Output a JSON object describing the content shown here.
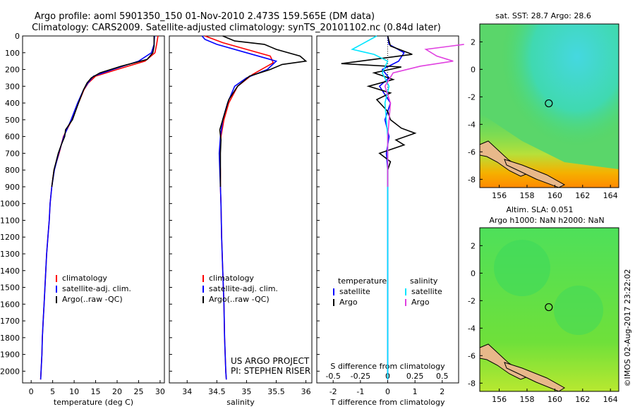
{
  "header": {
    "line1": "Argo profile: aoml 5901350_150 01-Nov-2010 2.473S 159.565E (DM data)",
    "line2": "Climatology: CARS2009. Satellite-adjusted climatology: synTS_20101102.nc (0.84d later)"
  },
  "sst_map": {
    "title": "sat. SST: 28.7 Argo: 28.6",
    "xticks": [
      "156",
      "158",
      "160",
      "162",
      "164"
    ],
    "yticks": [
      "2",
      "0",
      "-2",
      "-4",
      "-6",
      "-8"
    ],
    "marker": {
      "lon": 159.565,
      "lat": -2.473
    },
    "colors": {
      "land": "#e8b88a",
      "cool": "#3fdccb",
      "warm": "#ff9a00"
    }
  },
  "sla_map": {
    "title1": "Altim. SLA: 0.051",
    "title2": "Argo h1000: NaN h2000: NaN",
    "xticks": [
      "156",
      "158",
      "160",
      "162",
      "164"
    ],
    "yticks": [
      "2",
      "0",
      "-2",
      "-4",
      "-6",
      "-8"
    ],
    "marker": {
      "lon": 159.565,
      "lat": -2.473
    }
  },
  "credits": {
    "project": "US ARGO PROJECT",
    "pi": "PI: STEPHEN RISER",
    "stamp": "©IMOS 02-Aug-2017 23:22:02"
  },
  "chart_data": [
    {
      "type": "line",
      "xlabel": "temperature (deg C)",
      "ylabel": "",
      "xlim": [
        -2,
        31
      ],
      "ylim": [
        2070,
        0
      ],
      "xticks": [
        0,
        5,
        10,
        15,
        20,
        25,
        30
      ],
      "yticks": [
        0,
        100,
        200,
        300,
        400,
        500,
        600,
        700,
        800,
        900,
        1000,
        1100,
        1200,
        1300,
        1400,
        1500,
        1600,
        1700,
        1800,
        1900,
        2000
      ],
      "legend": [
        "climatology",
        "satellite-adj. clim.",
        "Argo(..raw -QC)"
      ],
      "series": [
        {
          "name": "climatology",
          "color": "#ff0000",
          "points": [
            [
              29.5,
              0
            ],
            [
              29.2,
              50
            ],
            [
              28.8,
              100
            ],
            [
              26.5,
              150
            ],
            [
              20,
              200
            ],
            [
              15,
              240
            ],
            [
              13.3,
              280
            ],
            [
              12.3,
              320
            ],
            [
              11,
              400
            ],
            [
              9.5,
              500
            ],
            [
              7.5,
              600
            ],
            [
              6.5,
              700
            ],
            [
              5.3,
              800
            ],
            [
              4.8,
              900
            ],
            [
              4.4,
              1000
            ],
            [
              4.2,
              1100
            ],
            [
              3.9,
              1200
            ],
            [
              3.6,
              1300
            ],
            [
              3.4,
              1400
            ],
            [
              3.2,
              1500
            ],
            [
              3,
              1600
            ],
            [
              2.8,
              1700
            ],
            [
              2.6,
              1800
            ],
            [
              2.5,
              1900
            ],
            [
              2.3,
              2000
            ],
            [
              2.2,
              2050
            ]
          ]
        },
        {
          "name": "satellite-adj. clim.",
          "color": "#0000ff",
          "points": [
            [
              28.7,
              0
            ],
            [
              28.6,
              50
            ],
            [
              28,
              100
            ],
            [
              25,
              150
            ],
            [
              19,
              200
            ],
            [
              14.5,
              240
            ],
            [
              13.2,
              280
            ],
            [
              12.2,
              320
            ],
            [
              10.8,
              400
            ],
            [
              9.3,
              500
            ],
            [
              7.6,
              600
            ],
            [
              6.4,
              700
            ],
            [
              5.4,
              800
            ],
            [
              4.8,
              900
            ],
            [
              4.4,
              1000
            ],
            [
              4.2,
              1100
            ],
            [
              3.9,
              1200
            ],
            [
              3.6,
              1300
            ],
            [
              3.4,
              1400
            ],
            [
              3.2,
              1500
            ],
            [
              3,
              1600
            ],
            [
              2.8,
              1700
            ],
            [
              2.6,
              1800
            ],
            [
              2.5,
              1900
            ],
            [
              2.3,
              2000
            ],
            [
              2.2,
              2050
            ]
          ]
        },
        {
          "name": "Argo(..raw -QC)",
          "color": "#000000",
          "points": [
            [
              28.6,
              0
            ],
            [
              28.6,
              60
            ],
            [
              28.3,
              100
            ],
            [
              27,
              140
            ],
            [
              21,
              180
            ],
            [
              16,
              220
            ],
            [
              14,
              250
            ],
            [
              13,
              280
            ],
            [
              12.2,
              320
            ],
            [
              11,
              400
            ],
            [
              9.6,
              500
            ],
            [
              8,
              560
            ],
            [
              7.8,
              600
            ],
            [
              7,
              650
            ],
            [
              6.3,
              700
            ],
            [
              5.3,
              800
            ],
            [
              4.8,
              900
            ]
          ]
        }
      ]
    },
    {
      "type": "line",
      "xlabel": "salinity",
      "ylabel": "",
      "xlim": [
        33.7,
        36.1
      ],
      "ylim": [
        2070,
        0
      ],
      "xticks": [
        34,
        34.5,
        35,
        35.5,
        36
      ],
      "legend": [
        "climatology",
        "satellite-adj. clim.",
        "Argo(..raw -QC)"
      ],
      "series": [
        {
          "name": "climatology",
          "color": "#ff0000",
          "points": [
            [
              34.3,
              0
            ],
            [
              34.6,
              40
            ],
            [
              35,
              80
            ],
            [
              35.4,
              120
            ],
            [
              35.45,
              160
            ],
            [
              35.1,
              230
            ],
            [
              34.85,
              300
            ],
            [
              34.7,
              400
            ],
            [
              34.62,
              500
            ],
            [
              34.57,
              600
            ],
            [
              34.55,
              700
            ],
            [
              34.56,
              800
            ],
            [
              34.56,
              900
            ],
            [
              34.57,
              1000
            ],
            [
              34.58,
              1200
            ],
            [
              34.6,
              1400
            ],
            [
              34.62,
              1600
            ],
            [
              34.63,
              1800
            ],
            [
              34.65,
              2000
            ],
            [
              34.66,
              2050
            ]
          ]
        },
        {
          "name": "satellite-adj. clim.",
          "color": "#0000ff",
          "points": [
            [
              34.25,
              0
            ],
            [
              34.3,
              20
            ],
            [
              34.5,
              50
            ],
            [
              35,
              100
            ],
            [
              35.5,
              150
            ],
            [
              35.35,
              200
            ],
            [
              35,
              250
            ],
            [
              34.8,
              300
            ],
            [
              34.68,
              400
            ],
            [
              34.6,
              500
            ],
            [
              34.56,
              600
            ],
            [
              34.54,
              700
            ],
            [
              34.55,
              800
            ],
            [
              34.56,
              900
            ],
            [
              34.57,
              1000
            ],
            [
              34.58,
              1200
            ],
            [
              34.6,
              1400
            ],
            [
              34.62,
              1600
            ],
            [
              34.63,
              1800
            ],
            [
              34.65,
              2000
            ],
            [
              34.66,
              2050
            ]
          ]
        },
        {
          "name": "Argo(..raw -QC)",
          "color": "#000000",
          "points": [
            [
              34.6,
              0
            ],
            [
              34.8,
              30
            ],
            [
              35.3,
              50
            ],
            [
              35.5,
              80
            ],
            [
              35.9,
              120
            ],
            [
              36,
              150
            ],
            [
              35.6,
              170
            ],
            [
              35.4,
              200
            ],
            [
              35.05,
              240
            ],
            [
              34.85,
              300
            ],
            [
              34.7,
              380
            ],
            [
              34.6,
              500
            ],
            [
              34.55,
              560
            ],
            [
              34.57,
              620
            ],
            [
              34.56,
              700
            ],
            [
              34.56,
              800
            ],
            [
              34.56,
              900
            ]
          ]
        }
      ]
    },
    {
      "type": "line",
      "xlabel": "T difference from climatology",
      "x2label": "S difference from climatology",
      "ylabel": "",
      "xlim": [
        -2.6,
        2.6
      ],
      "x2lim": [
        -0.65,
        0.65
      ],
      "ylim": [
        2070,
        0
      ],
      "xticks": [
        -2,
        -1,
        0,
        1,
        2
      ],
      "x2ticks": [
        "-0.5",
        "-0.25",
        "0",
        "0.25",
        "0.5"
      ],
      "legend_groups": {
        "temperature": [
          "satellite",
          "Argo"
        ],
        "salinity": [
          "satellite",
          "Argo"
        ]
      },
      "series": [
        {
          "name": "temperature satellite",
          "color": "#0000ff",
          "points": [
            [
              0,
              0
            ],
            [
              0.05,
              50
            ],
            [
              0.6,
              100
            ],
            [
              0.4,
              150
            ],
            [
              -0.2,
              200
            ],
            [
              0.05,
              250
            ],
            [
              -0.3,
              300
            ],
            [
              0.1,
              400
            ],
            [
              -0.1,
              500
            ],
            [
              0.05,
              600
            ],
            [
              -0.05,
              700
            ],
            [
              0,
              800
            ],
            [
              0,
              1000
            ],
            [
              0,
              2050
            ]
          ]
        },
        {
          "name": "temperature Argo",
          "color": "#000000",
          "points": [
            [
              0,
              0
            ],
            [
              0.1,
              60
            ],
            [
              0.9,
              110
            ],
            [
              -1,
              150
            ],
            [
              -1.7,
              165
            ],
            [
              0.5,
              185
            ],
            [
              -0.5,
              220
            ],
            [
              0.2,
              260
            ],
            [
              -0.7,
              300
            ],
            [
              0.1,
              340
            ],
            [
              -0.4,
              380
            ],
            [
              0,
              450
            ],
            [
              0.1,
              500
            ],
            [
              0.5,
              550
            ],
            [
              1,
              580
            ],
            [
              0.3,
              620
            ],
            [
              0.6,
              650
            ],
            [
              -0.3,
              700
            ],
            [
              0.1,
              750
            ],
            [
              0,
              800
            ],
            [
              0,
              900
            ]
          ]
        },
        {
          "name": "salinity satellite",
          "color": "#00e5ff",
          "points": [
            [
              -0.4,
              0
            ],
            [
              -1.3,
              80
            ],
            [
              -0.5,
              110
            ],
            [
              0,
              150
            ],
            [
              -0.2,
              220
            ],
            [
              0.05,
              300
            ],
            [
              -0.1,
              400
            ],
            [
              0,
              600
            ],
            [
              0,
              1000
            ],
            [
              0,
              1500
            ],
            [
              0,
              2050
            ]
          ]
        },
        {
          "name": "salinity Argo",
          "color": "#e040e0",
          "points": [
            [
              2.8,
              50
            ],
            [
              1.4,
              80
            ],
            [
              1.8,
              120
            ],
            [
              2.4,
              150
            ],
            [
              1.2,
              180
            ],
            [
              0.2,
              220
            ],
            [
              -0.1,
              300
            ],
            [
              0.1,
              400
            ],
            [
              0,
              600
            ],
            [
              0,
              900
            ]
          ]
        }
      ]
    }
  ]
}
